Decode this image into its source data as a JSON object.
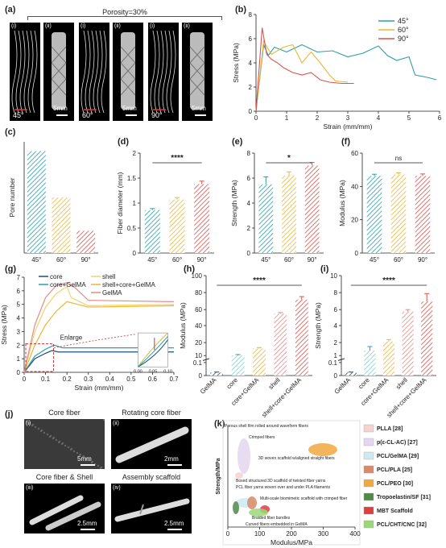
{
  "panels": {
    "a": "(a)",
    "b": "(b)",
    "c": "(c)",
    "d": "(d)",
    "e": "(e)",
    "f": "(f)",
    "g": "(g)",
    "h": "(h)",
    "i": "(i)",
    "j": "(j)",
    "k": "(k)"
  },
  "panel_a": {
    "title": "Porosity=30%",
    "groups": [
      {
        "angle": "45°",
        "scale": "5mm"
      },
      {
        "angle": "60°",
        "scale": "5mm"
      },
      {
        "angle": "90°",
        "scale": "5mm"
      }
    ],
    "sub_i": "(i)",
    "sub_ii": "(ii)"
  },
  "panel_j": {
    "tiles": [
      {
        "sub": "(i)",
        "title": "Core fiber",
        "scale": "5mm"
      },
      {
        "sub": "(ii)",
        "title": "Rotating core fiber",
        "scale": "2mm"
      },
      {
        "sub": "(iii)",
        "title": "Core fiber & Shell",
        "scale": "2.5mm"
      },
      {
        "sub": "(iv)",
        "title": "Assembly scaffold",
        "scale": "2.5mm"
      }
    ]
  },
  "colors": {
    "teal": "#2aa0a8",
    "yellow": "#e8b73a",
    "red": "#d9534f",
    "pink": "#e48a8a"
  },
  "chart_data": [
    {
      "id": "b",
      "type": "line",
      "xlabel": "Strain (mm/mm)",
      "ylabel": "Stress (MPa)",
      "xlim": [
        0,
        6
      ],
      "ylim": [
        0,
        8
      ],
      "xticks": [
        "0",
        "1",
        "2",
        "3",
        "4",
        "5",
        "6"
      ],
      "yticks": [
        "0",
        "2",
        "4",
        "6",
        "8"
      ],
      "series": [
        {
          "name": "45°",
          "color": "#2aa0a8",
          "x": [
            0,
            0.25,
            0.4,
            0.6,
            1,
            1.5,
            2,
            2.5,
            3,
            3.5,
            4,
            4.3,
            4.6,
            5,
            5.2,
            5.6,
            5.9
          ],
          "y": [
            0,
            5.5,
            4.6,
            5.3,
            4.9,
            5.5,
            4.9,
            5.0,
            4.5,
            4.8,
            5.4,
            4.6,
            4.2,
            4.5,
            3.0,
            2.8,
            2.6
          ]
        },
        {
          "name": "60°",
          "color": "#e8b73a",
          "x": [
            0,
            0.25,
            0.5,
            0.9,
            1.2,
            1.5,
            1.8,
            2.1,
            2.4,
            2.6,
            3.0
          ],
          "y": [
            0,
            5.8,
            4.7,
            5.3,
            5.5,
            4.0,
            4.9,
            4.0,
            3.0,
            2.5,
            2.4
          ]
        },
        {
          "name": "90°",
          "color": "#d9534f",
          "x": [
            0,
            0.2,
            0.35,
            0.5,
            0.7,
            0.9,
            1.2,
            1.5,
            1.8,
            2.1,
            2.4,
            2.8,
            3.2
          ],
          "y": [
            0,
            6.9,
            4.7,
            4.3,
            4.0,
            3.6,
            3.2,
            3.0,
            3.2,
            2.6,
            2.4,
            2.3,
            2.3
          ]
        }
      ]
    },
    {
      "id": "c",
      "type": "bar",
      "ylabel": "Pore number",
      "categories": [
        "45°",
        "60°",
        "90°"
      ],
      "values": [
        55,
        30,
        12
      ],
      "ylim": [
        0,
        60
      ]
    },
    {
      "id": "d",
      "type": "bar",
      "ylabel": "Fiber diameter (mm)",
      "categories": [
        "45°",
        "60°",
        "90°"
      ],
      "values": [
        0.86,
        1.07,
        1.38
      ],
      "ylim": [
        0,
        2
      ],
      "yticks": [
        "0",
        "0.5",
        "1",
        "1.5",
        "2"
      ],
      "sig": "****"
    },
    {
      "id": "e",
      "type": "bar",
      "ylabel": "Strength (MPa)",
      "categories": [
        "45°",
        "60°",
        "90°"
      ],
      "values": [
        5.5,
        6.2,
        7.0
      ],
      "ylim": [
        0,
        8
      ],
      "yticks": [
        "0",
        "2",
        "4",
        "6",
        "8"
      ],
      "sig": "*"
    },
    {
      "id": "f",
      "type": "bar",
      "ylabel": "Modulus (MPa)",
      "categories": [
        "45°",
        "60°",
        "90°"
      ],
      "values": [
        54,
        55,
        54
      ],
      "ylim": [
        0,
        70
      ],
      "yticks": [
        "0",
        "20",
        "40",
        "60"
      ],
      "sig": "ns"
    },
    {
      "id": "g",
      "type": "line",
      "xlabel": "Strain (mm/mm)",
      "ylabel": "Stress (MPa)",
      "xlim": [
        0,
        0.7
      ],
      "ylim": [
        0,
        7
      ],
      "xticks": [
        "0",
        "0.1",
        "0.2",
        "0.3",
        "0.4",
        "0.5",
        "0.6",
        "0.7"
      ],
      "yticks": [
        "0",
        "1",
        "2",
        "3",
        "4",
        "5",
        "6",
        "7"
      ],
      "annotation": "Enlarge",
      "inset_xticks": [
        "0.00",
        "0.05",
        "0.10"
      ],
      "series": [
        {
          "name": "core",
          "color": "#1f4e79",
          "x": [
            0,
            0.05,
            0.1,
            0.13,
            0.16,
            0.7
          ],
          "y": [
            0,
            1.0,
            1.4,
            1.6,
            1.5,
            1.5
          ]
        },
        {
          "name": "core+GelMA",
          "color": "#2aa0a8",
          "x": [
            0,
            0.05,
            0.1,
            0.14,
            0.18,
            0.7
          ],
          "y": [
            0,
            1.2,
            1.7,
            2.0,
            1.8,
            1.8
          ]
        },
        {
          "name": "shell",
          "color": "#f3d36a",
          "x": [
            0,
            0.05,
            0.1,
            0.15,
            0.2,
            0.22,
            0.3,
            0.7
          ],
          "y": [
            0,
            3.0,
            4.8,
            5.8,
            6.3,
            5.5,
            4.9,
            5.0
          ]
        },
        {
          "name": "shell+core+GelMA",
          "color": "#e8b73a",
          "x": [
            0,
            0.05,
            0.1,
            0.15,
            0.2,
            0.25,
            0.3,
            0.7
          ],
          "y": [
            0,
            2.0,
            3.5,
            4.5,
            5.2,
            5.0,
            4.8,
            4.9
          ]
        },
        {
          "name": "GelMA",
          "color": "#e48a8a",
          "x": [
            0,
            0.05,
            0.1,
            0.15,
            0.2,
            0.24,
            0.3,
            0.7
          ],
          "y": [
            0,
            3.5,
            5.5,
            6.4,
            6.6,
            6.2,
            5.3,
            5.2
          ]
        }
      ]
    },
    {
      "id": "h",
      "type": "bar",
      "ylabel": "Modulus (MPa)",
      "categories": [
        "GelMA",
        "core",
        "core+GelMA",
        "shell",
        "shell+core+GelMA"
      ],
      "values": [
        0.04,
        8,
        13,
        53,
        70
      ],
      "yticks": [
        "0",
        "0.1",
        "10",
        "20",
        "40",
        "60",
        "80",
        "100"
      ],
      "sig": "****"
    },
    {
      "id": "i",
      "type": "bar",
      "ylabel": "Strength (MPa)",
      "categories": [
        "GelMA",
        "core",
        "core+GelMA",
        "shell",
        "shell+core+GelMA"
      ],
      "values": [
        0.05,
        1.7,
        2.5,
        5.8,
        6.9
      ],
      "yticks": [
        "0",
        "0.1",
        "1",
        "2",
        "4",
        "6",
        "8",
        "10"
      ],
      "sig": "****"
    },
    {
      "id": "k",
      "type": "scatter",
      "xlabel": "Modulus/MPa",
      "ylabel": "Strength/MPa",
      "xticks": [
        "0",
        "100",
        "200",
        "300",
        "400"
      ],
      "legend": [
        {
          "name": "PLLA",
          "ref": "[28]",
          "color": "#f6d2d2"
        },
        {
          "name": "p(ε-CL-AC)",
          "ref": "[27]",
          "color": "#e4d6ef"
        },
        {
          "name": "PCL/GelMA",
          "ref": "[29]",
          "color": "#cdeaf3"
        },
        {
          "name": "PCL/PLA",
          "ref": "[25]",
          "color": "#d98a6a"
        },
        {
          "name": "PCL/PEO",
          "ref": "[30]",
          "color": "#f0a840"
        },
        {
          "name": "Tropoelastin/SF",
          "ref": "[31]",
          "color": "#4f8a4a"
        },
        {
          "name": "MBT Scaffold",
          "ref": "",
          "color": "#d94040"
        },
        {
          "name": "PCL/CHT/CNC",
          "ref": "[32]",
          "color": "#9dd67a"
        }
      ],
      "annotations": [
        "Porous shell film rolled around waveform fibers",
        "Crimped fibers",
        "3D woven scaffold w/aligned straight fibers",
        "Boxed structured 3D scaffold of twisted fiber yarns",
        "PCL fiber yarns woven over and under PLA filaments",
        "Multi-scale biomimetic scaffold with crimped fiber",
        "Braided fiber bundles",
        "Curved fibers embedded in GelMA"
      ]
    }
  ]
}
